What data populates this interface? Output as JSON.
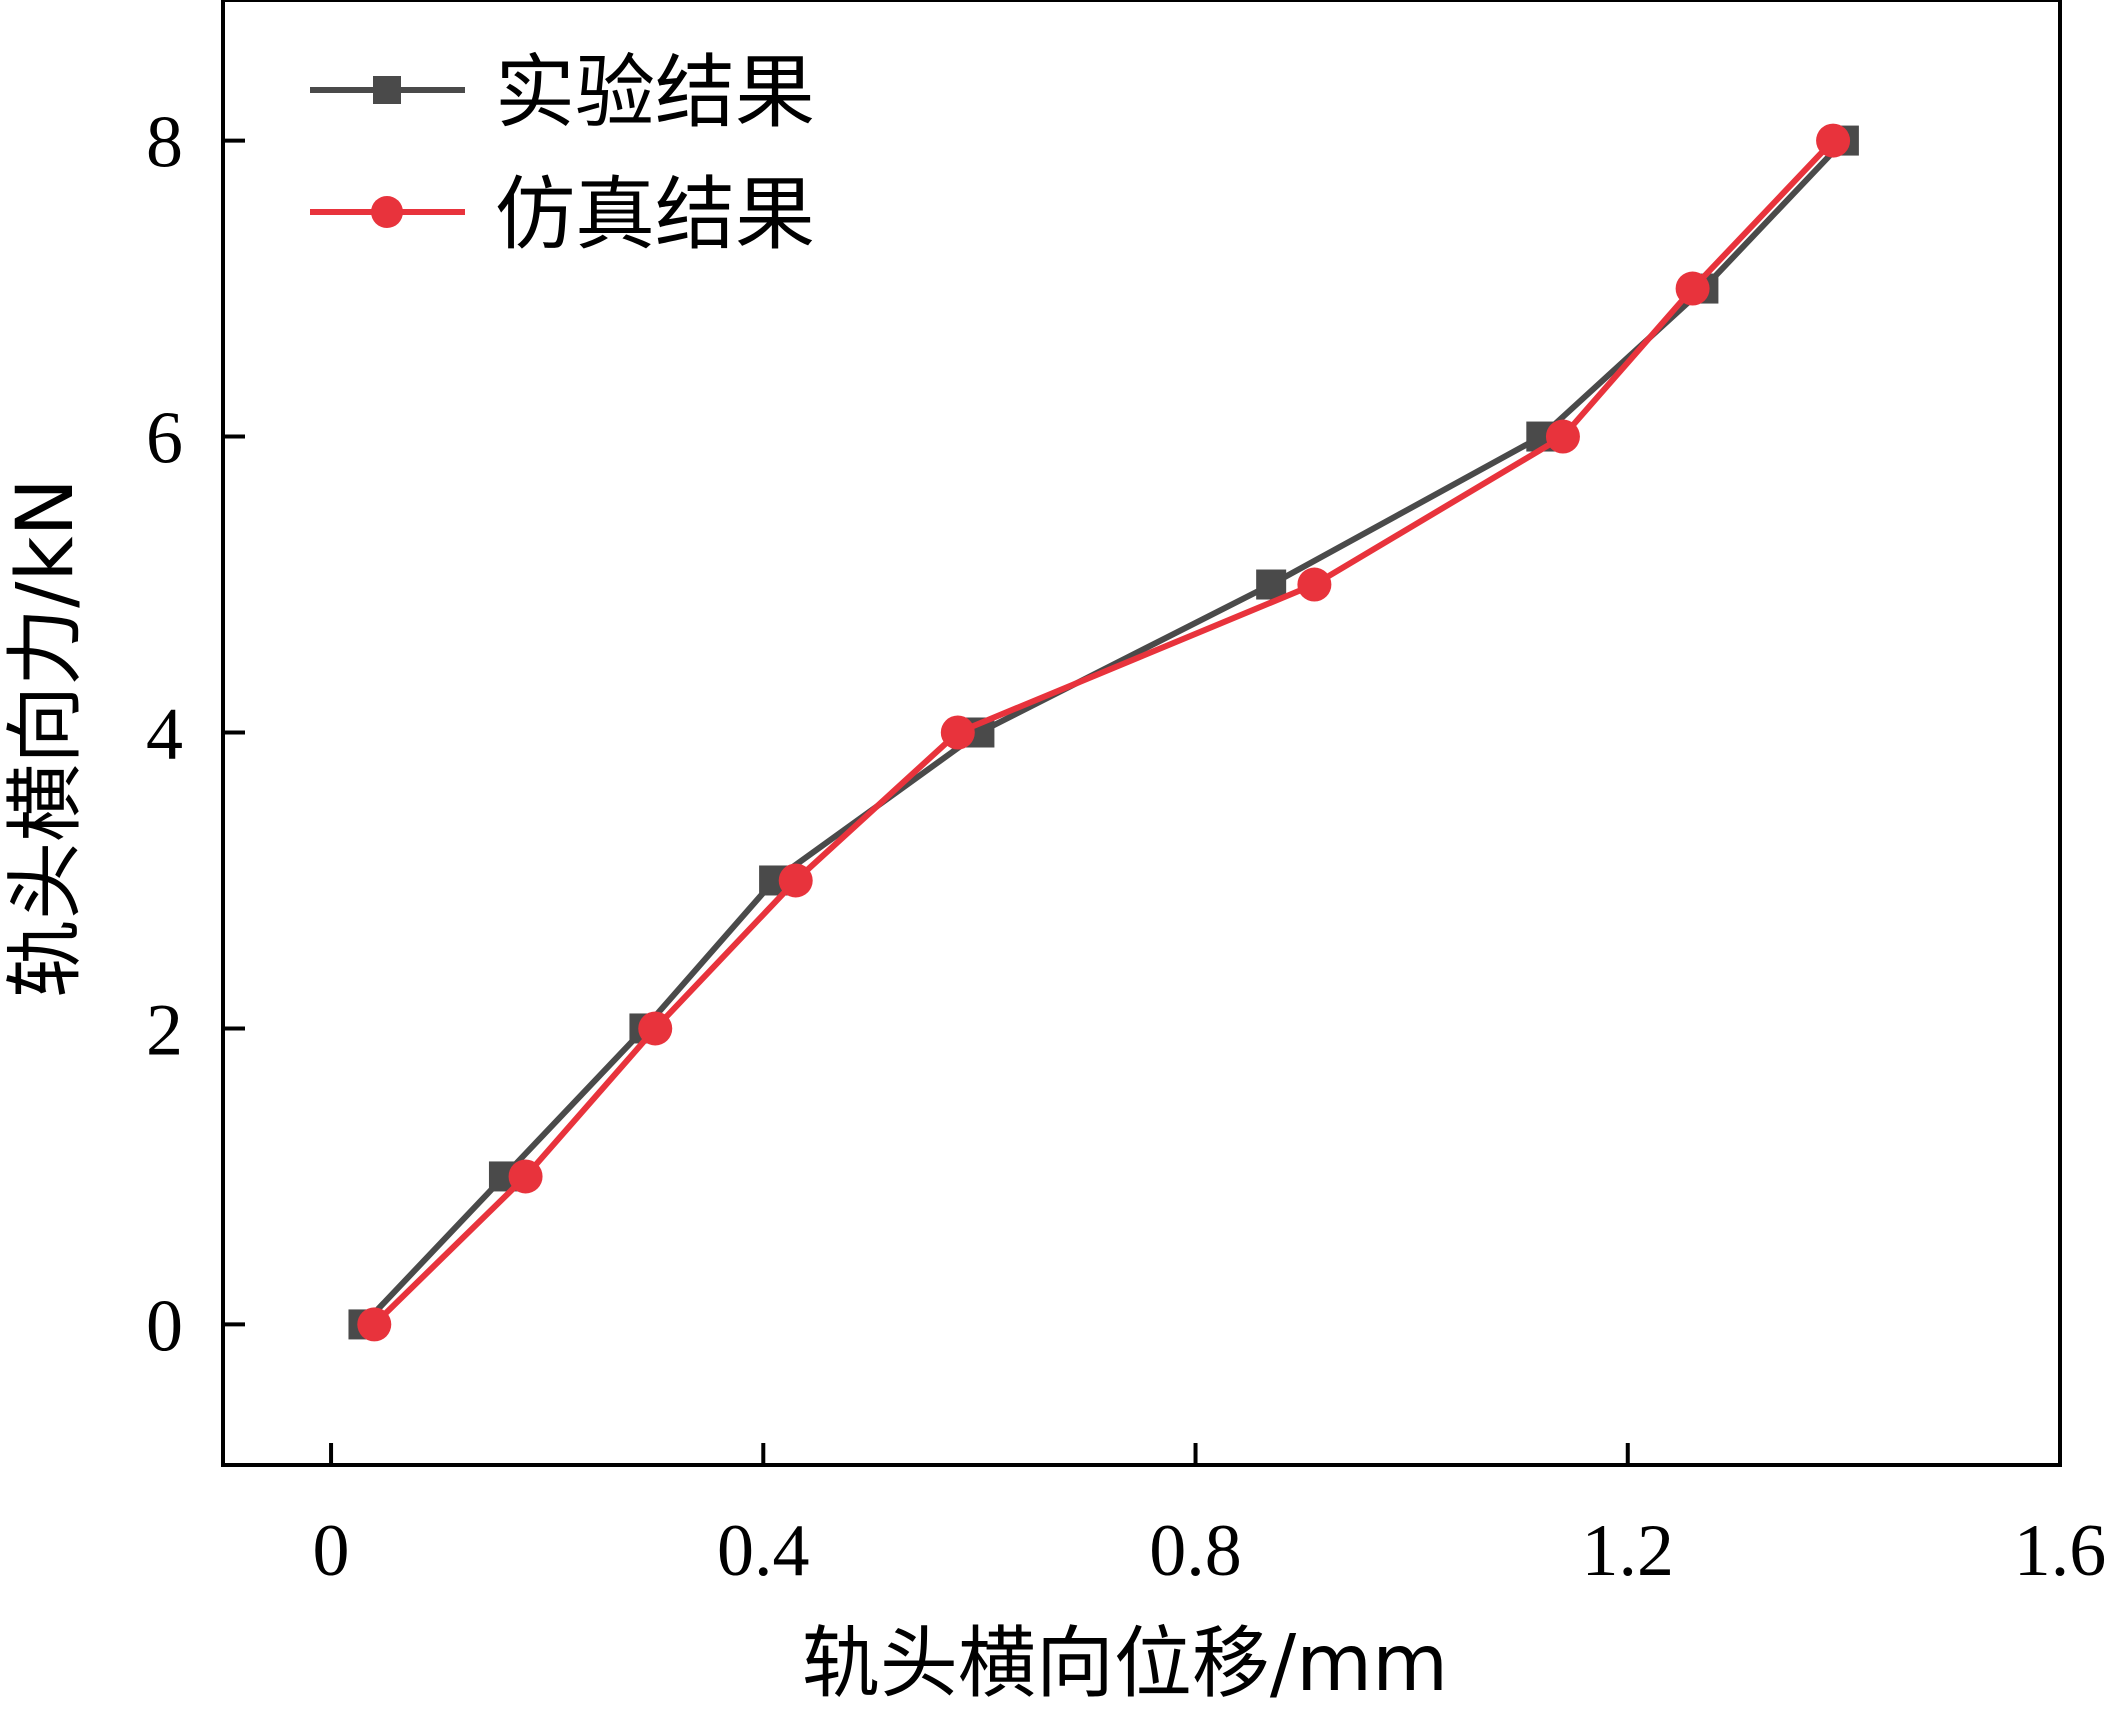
{
  "chart_data": {
    "type": "line",
    "title": "",
    "xlabel": "轨头横向位移/mm",
    "ylabel": "轨头横向力/kN",
    "xlim": [
      -0.1,
      1.6
    ],
    "ylim": [
      -0.95,
      8.95
    ],
    "x_ticks": [
      0,
      0.4,
      0.8,
      1.2,
      1.6
    ],
    "x_tick_labels": [
      "0",
      "0.4",
      "0.8",
      "1.2",
      "1.6"
    ],
    "y_ticks": [
      0,
      2,
      4,
      6,
      8
    ],
    "y_tick_labels": [
      "0",
      "2",
      "4",
      "6",
      "8"
    ],
    "grid": false,
    "legend_position": "top-left",
    "series": [
      {
        "name": "实验结果",
        "color": "#4a4a4a",
        "marker": "square",
        "x": [
          0.03,
          0.16,
          0.29,
          0.41,
          0.6,
          0.87,
          1.12,
          1.27,
          1.4
        ],
        "y": [
          0,
          1,
          2,
          3,
          4,
          5,
          6,
          7,
          8
        ]
      },
      {
        "name": "仿真结果",
        "color": "#e8333c",
        "marker": "circle",
        "x": [
          0.04,
          0.18,
          0.3,
          0.43,
          0.58,
          0.91,
          1.14,
          1.26,
          1.39
        ],
        "y": [
          0,
          1,
          2,
          3,
          4,
          5,
          6,
          7,
          8
        ]
      }
    ]
  }
}
